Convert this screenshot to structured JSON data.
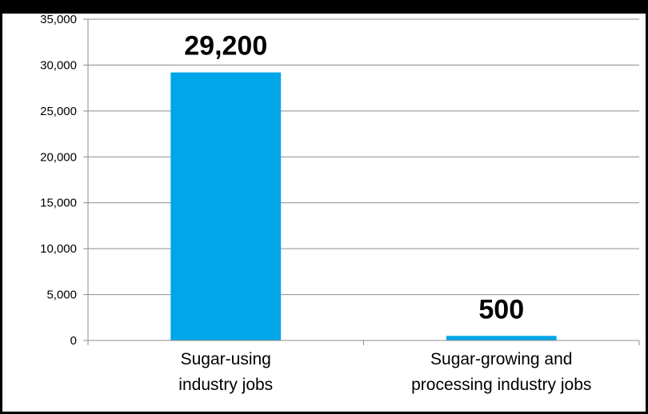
{
  "chart_data": {
    "type": "bar",
    "title": "",
    "xlabel": "",
    "ylabel": "",
    "categories": [
      [
        "Sugar-using",
        "industry jobs"
      ],
      [
        "Sugar-growing and",
        "processing industry jobs"
      ]
    ],
    "values": [
      29200,
      500
    ],
    "data_labels": [
      "29,200",
      "500"
    ],
    "ylim": [
      0,
      35000
    ],
    "y_ticks": [
      0,
      5000,
      10000,
      15000,
      20000,
      25000,
      30000,
      35000
    ],
    "y_tick_labels": [
      "0",
      "5,000",
      "10,000",
      "15,000",
      "20,000",
      "25,000",
      "30,000",
      "35,000"
    ],
    "grid": true,
    "legend": "none",
    "colors": {
      "bar": "#00a6e8",
      "grid": "#8c8c8c",
      "axis": "#8c8c8c"
    }
  }
}
